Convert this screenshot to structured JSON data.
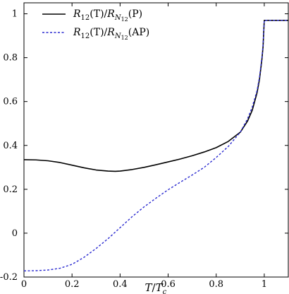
{
  "chart_data": {
    "type": "line",
    "xlabel_parts": {
      "main": "T",
      "slash": "/",
      "var": "T",
      "sub": "c"
    },
    "x_ticks": [
      0,
      0.2,
      0.4,
      0.6,
      0.8,
      1
    ],
    "x_tick_labels": [
      "0",
      "0.2",
      "0.4",
      "0.6",
      "0.8",
      "1"
    ],
    "y_ticks": [
      -0.2,
      0,
      0.2,
      0.4,
      0.6,
      0.8,
      1
    ],
    "y_tick_labels": [
      "-0.2",
      "0",
      "0.2",
      "0.4",
      "0.6",
      "0.8",
      "1"
    ],
    "xlim": [
      0,
      1.1
    ],
    "ylim": [
      -0.2,
      1.05
    ],
    "grid": false,
    "legend_position": "top-left",
    "series": [
      {
        "name": "R12(T)/RN12(P)",
        "label_parts": {
          "r": "R",
          "sub1": "12",
          "mid": "(T)/",
          "r2": "R",
          "subN": "N",
          "subNsub": "12",
          "tail": "(P)"
        },
        "color": "#000000",
        "style": "solid",
        "x": [
          0,
          0.05,
          0.1,
          0.15,
          0.2,
          0.25,
          0.3,
          0.35,
          0.38,
          0.4,
          0.45,
          0.5,
          0.55,
          0.6,
          0.65,
          0.7,
          0.75,
          0.8,
          0.85,
          0.9,
          0.93,
          0.95,
          0.97,
          0.98,
          0.99,
          0.995,
          1.0,
          1.1
        ],
        "y": [
          0.335,
          0.334,
          0.33,
          0.322,
          0.31,
          0.298,
          0.288,
          0.283,
          0.282,
          0.283,
          0.29,
          0.3,
          0.312,
          0.325,
          0.338,
          0.353,
          0.37,
          0.39,
          0.418,
          0.46,
          0.51,
          0.56,
          0.64,
          0.7,
          0.79,
          0.85,
          0.97,
          0.97
        ]
      },
      {
        "name": "R12(T)/RN12(AP)",
        "label_parts": {
          "r": "R",
          "sub1": "12",
          "mid": "(T)/",
          "r2": "R",
          "subN": "N",
          "subNsub": "12",
          "tail": "(AP)"
        },
        "color": "#2a2ad0",
        "style": "dashed",
        "x": [
          0,
          0.05,
          0.1,
          0.15,
          0.2,
          0.25,
          0.3,
          0.35,
          0.4,
          0.45,
          0.5,
          0.55,
          0.6,
          0.65,
          0.7,
          0.75,
          0.8,
          0.85,
          0.9,
          0.93,
          0.95,
          0.97,
          0.98,
          0.99,
          0.995,
          1.0,
          1.1
        ],
        "y": [
          -0.172,
          -0.171,
          -0.168,
          -0.16,
          -0.142,
          -0.11,
          -0.07,
          -0.025,
          0.025,
          0.075,
          0.12,
          0.16,
          0.198,
          0.232,
          0.265,
          0.3,
          0.345,
          0.395,
          0.46,
          0.52,
          0.575,
          0.65,
          0.71,
          0.8,
          0.86,
          0.97,
          0.97
        ]
      }
    ]
  }
}
